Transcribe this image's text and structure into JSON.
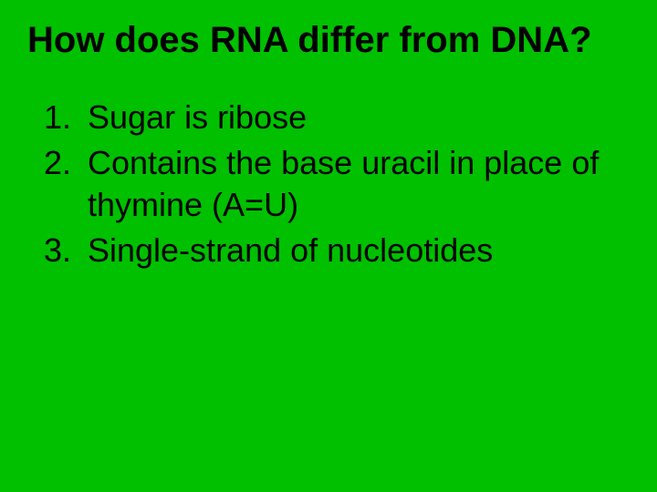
{
  "background_color": "#00c000",
  "text_color": "#000000",
  "font_family": "Comic Sans MS",
  "title": {
    "text": "How does RNA differ from DNA?",
    "font_size_pt": 40,
    "font_weight": "bold"
  },
  "list": {
    "font_size_pt": 36,
    "items": [
      {
        "num": "1.",
        "text": "Sugar is ribose"
      },
      {
        "num": "2.",
        "text": "Contains the base uracil in place of thymine (A=U)"
      },
      {
        "num": "3.",
        "text": "Single-strand of nucleotides"
      }
    ]
  }
}
